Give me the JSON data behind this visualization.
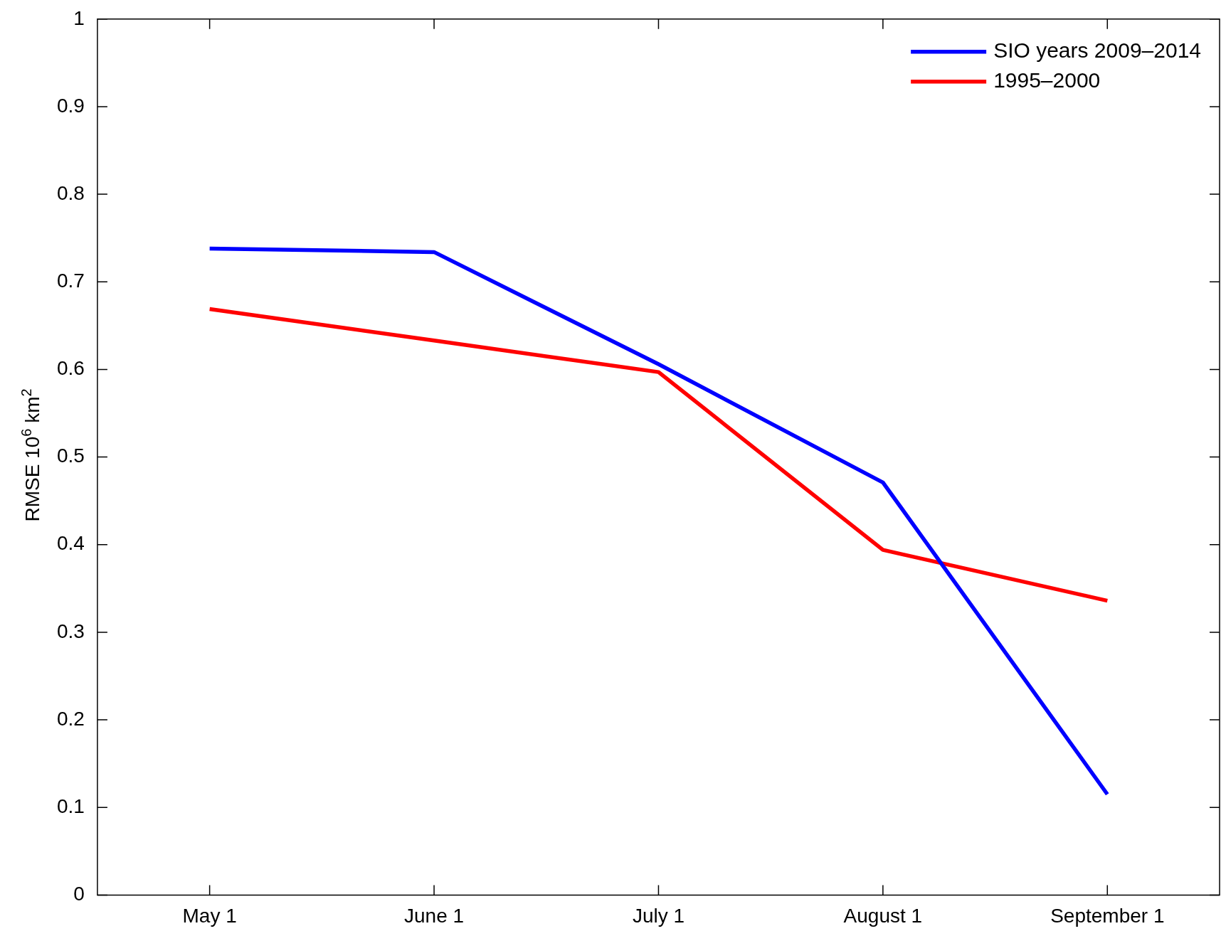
{
  "chart_data": {
    "type": "line",
    "ylabel": "RMSE 10$^{6}$ km$^{2}$",
    "categories": [
      "May 1",
      "June 1",
      "July 1",
      "August 1",
      "September 1"
    ],
    "series": [
      {
        "name": "SIO years 2009–2014",
        "color": "#0000ff",
        "values": [
          0.738,
          0.734,
          0.606,
          0.471,
          0.115
        ]
      },
      {
        "name": "1995–2000",
        "color": "#ff0000",
        "values": [
          0.669,
          0.633,
          0.597,
          0.394,
          0.336
        ]
      }
    ],
    "ylim": [
      0,
      1
    ],
    "yticks": [
      0,
      0.1,
      0.2,
      0.3,
      0.4,
      0.5,
      0.6,
      0.7,
      0.8,
      0.9,
      1
    ],
    "grid": false,
    "legend": "top right",
    "marker": "none",
    "line_style": "solid"
  }
}
